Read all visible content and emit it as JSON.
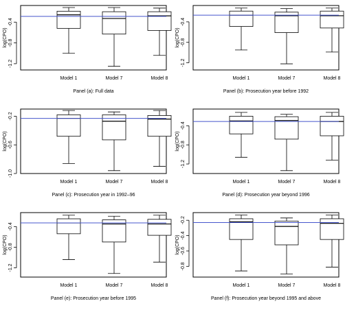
{
  "chart_data": [
    {
      "type": "boxplot",
      "caption": "Panel (a): Full data",
      "ylabel": "log(CPO)",
      "ylim": [
        -1.32,
        -0.08
      ],
      "yticks": [
        "-0.4",
        "-0.8",
        "-1.2"
      ],
      "ytick_values": [
        -0.4,
        -0.8,
        -1.2
      ],
      "categories": [
        "Model 1",
        "Model 7",
        "Model 8"
      ],
      "boxes": [
        {
          "min": -1.0,
          "q1": -0.52,
          "median": -0.26,
          "q3": -0.19,
          "max": -0.12
        },
        {
          "min": -1.25,
          "q1": -0.63,
          "median": -0.33,
          "q3": -0.2,
          "max": -0.12
        },
        {
          "min": -1.04,
          "q1": -0.56,
          "median": -0.28,
          "q3": -0.2,
          "max": -0.13
        }
      ],
      "reference_line": -0.29,
      "reference_color": "#4455cc"
    },
    {
      "type": "boxplot",
      "caption": "Panel (b): Prosecution year before 1992",
      "ylabel": "log(CPO)",
      "ylim": [
        -1.34,
        -0.08
      ],
      "yticks": [
        "-0.4",
        "-0.8",
        "-1.2"
      ],
      "ytick_values": [
        -0.4,
        -0.8,
        -1.2
      ],
      "categories": [
        "Model 1",
        "Model 7",
        "Model 8"
      ],
      "boxes": [
        {
          "min": -0.95,
          "q1": -0.49,
          "median": -0.27,
          "q3": -0.19,
          "max": -0.13
        },
        {
          "min": -1.22,
          "q1": -0.61,
          "median": -0.28,
          "q3": -0.21,
          "max": -0.14
        },
        {
          "min": -0.99,
          "q1": -0.52,
          "median": -0.28,
          "q3": -0.19,
          "max": -0.13
        }
      ],
      "reference_line": -0.27,
      "reference_color": "#4455cc"
    },
    {
      "type": "boxplot",
      "caption": "Panel (c): Prosecution year in 1992–96",
      "ylabel": "log(CPO)",
      "ylim": [
        -1.0,
        -0.1
      ],
      "yticks": [
        "-0.2",
        "-0.6",
        "-1.0"
      ],
      "ytick_values": [
        -0.2,
        -0.6,
        -1.0
      ],
      "categories": [
        "Model 1",
        "Model 7",
        "Model 8"
      ],
      "boxes": [
        {
          "min": -0.86,
          "q1": -0.48,
          "median": -0.23,
          "q3": -0.18,
          "max": -0.12
        },
        {
          "min": -0.96,
          "q1": -0.53,
          "median": -0.27,
          "q3": -0.18,
          "max": -0.14
        },
        {
          "min": -0.9,
          "q1": -0.48,
          "median": -0.24,
          "q3": -0.19,
          "max": -0.12
        }
      ],
      "reference_line": -0.23,
      "reference_color": "#4455cc"
    },
    {
      "type": "boxplot",
      "caption": "Panel (d): Prosecution year beyond 1996",
      "ylabel": "log(CPO)",
      "ylim": [
        -1.4,
        -0.05
      ],
      "yticks": [
        "-0.4",
        "-0.8",
        "-1.2"
      ],
      "ytick_values": [
        -0.4,
        -0.8,
        -1.2
      ],
      "categories": [
        "Model 1",
        "Model 7",
        "Model 8"
      ],
      "boxes": [
        {
          "min": -1.06,
          "q1": -0.57,
          "median": -0.3,
          "q3": -0.2,
          "max": -0.12
        },
        {
          "min": -1.34,
          "q1": -0.68,
          "median": -0.29,
          "q3": -0.21,
          "max": -0.16
        },
        {
          "min": -1.12,
          "q1": -0.61,
          "median": -0.31,
          "q3": -0.2,
          "max": -0.12
        }
      ],
      "reference_line": -0.31,
      "reference_color": "#4455cc"
    },
    {
      "type": "boxplot",
      "caption": "Panel (e): Prosecution year before 1995",
      "ylabel": "log(CPO)",
      "ylim": [
        -1.38,
        -0.13
      ],
      "yticks": [
        "-0.4",
        "-0.8",
        "-1.2"
      ],
      "ytick_values": [
        -0.4,
        -0.8,
        -1.2
      ],
      "categories": [
        "Model 1",
        "Model 7",
        "Model 8"
      ],
      "boxes": [
        {
          "min": -1.04,
          "q1": -0.54,
          "median": -0.33,
          "q3": -0.25,
          "max": -0.18
        },
        {
          "min": -1.31,
          "q1": -0.7,
          "median": -0.35,
          "q3": -0.27,
          "max": -0.2
        },
        {
          "min": -1.09,
          "q1": -0.57,
          "median": -0.35,
          "q3": -0.26,
          "max": -0.18
        }
      ],
      "reference_line": -0.33,
      "reference_color": "#4455cc"
    },
    {
      "type": "boxplot",
      "caption": "Panel (f): Prosecution year beyond 1995 and above",
      "ylabel": "log(CPO)",
      "ylim": [
        -0.94,
        -0.1
      ],
      "yticks": [
        "-0.2",
        "-0.4",
        "-0.6",
        "-0.8"
      ],
      "ytick_values": [
        -0.2,
        -0.4,
        -0.6,
        -0.8
      ],
      "categories": [
        "Model 1",
        "Model 7",
        "Model 8"
      ],
      "boxes": [
        {
          "min": -0.86,
          "q1": -0.45,
          "median": -0.22,
          "q3": -0.18,
          "max": -0.13
        },
        {
          "min": -0.9,
          "q1": -0.52,
          "median": -0.28,
          "q3": -0.21,
          "max": -0.17
        },
        {
          "min": -0.81,
          "q1": -0.45,
          "median": -0.24,
          "q3": -0.18,
          "max": -0.13
        }
      ],
      "reference_line": -0.23,
      "reference_color": "#4455cc"
    }
  ]
}
